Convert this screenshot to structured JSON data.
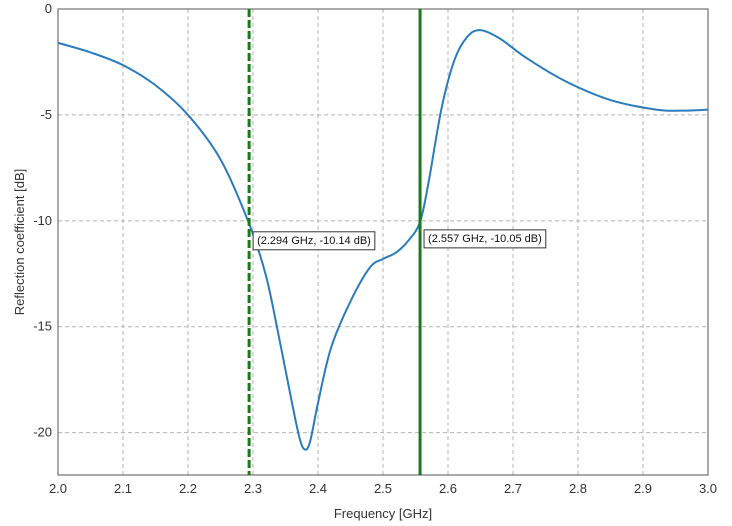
{
  "chart_data": {
    "type": "line",
    "xlabel": "Frequency [GHz]",
    "ylabel": "Reflection coefficient [dB]",
    "xlim": [
      2.0,
      3.0
    ],
    "ylim": [
      -22,
      0
    ],
    "xticks": [
      "2.0",
      "2.1",
      "2.2",
      "2.3",
      "2.4",
      "2.5",
      "2.6",
      "2.7",
      "2.8",
      "2.9",
      "3.0"
    ],
    "yticks": [
      "0",
      "-5",
      "-10",
      "-15",
      "-20"
    ],
    "grid": true,
    "colors": {
      "curve": "#2b7bbd",
      "marker_line": "#1a7a1a",
      "grid": "#b5b5b5"
    },
    "series": [
      {
        "points": [
          [
            2.0,
            -1.6
          ],
          [
            2.05,
            -2.05
          ],
          [
            2.1,
            -2.65
          ],
          [
            2.15,
            -3.6
          ],
          [
            2.2,
            -5.0
          ],
          [
            2.25,
            -7.1
          ],
          [
            2.294,
            -10.14
          ],
          [
            2.32,
            -12.6
          ],
          [
            2.34,
            -15.5
          ],
          [
            2.36,
            -18.6
          ],
          [
            2.372,
            -20.3
          ],
          [
            2.38,
            -20.8
          ],
          [
            2.388,
            -20.4
          ],
          [
            2.4,
            -18.6
          ],
          [
            2.42,
            -16.0
          ],
          [
            2.45,
            -13.8
          ],
          [
            2.48,
            -12.2
          ],
          [
            2.5,
            -11.8
          ],
          [
            2.52,
            -11.5
          ],
          [
            2.54,
            -10.9
          ],
          [
            2.557,
            -10.05
          ],
          [
            2.57,
            -8.2
          ],
          [
            2.59,
            -4.7
          ],
          [
            2.61,
            -2.4
          ],
          [
            2.63,
            -1.3
          ],
          [
            2.65,
            -1.0
          ],
          [
            2.68,
            -1.4
          ],
          [
            2.72,
            -2.3
          ],
          [
            2.78,
            -3.4
          ],
          [
            2.85,
            -4.3
          ],
          [
            2.92,
            -4.75
          ],
          [
            2.96,
            -4.8
          ],
          [
            3.0,
            -4.75
          ]
        ]
      }
    ],
    "markers": [
      {
        "x": 2.294,
        "y": -10.14,
        "style": "dashed",
        "label": "(2.294 GHz, -10.14 dB)"
      },
      {
        "x": 2.557,
        "y": -10.05,
        "style": "solid",
        "label": "(2.557 GHz, -10.05 dB)"
      }
    ]
  }
}
